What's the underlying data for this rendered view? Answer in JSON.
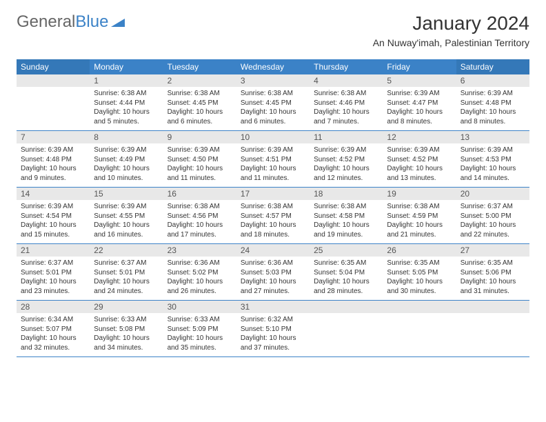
{
  "logo": {
    "text1": "General",
    "text2": "Blue"
  },
  "title": "January 2024",
  "location": "An Nuway'imah, Palestinian Territory",
  "colors": {
    "header_weekday": "#3b82c7",
    "header_weekend": "#3478b8",
    "daynum_bg": "#e8e8e8",
    "border": "#3b82c7",
    "text": "#333333",
    "logo_gray": "#666666",
    "logo_blue": "#3b82c7"
  },
  "day_names": [
    "Sunday",
    "Monday",
    "Tuesday",
    "Wednesday",
    "Thursday",
    "Friday",
    "Saturday"
  ],
  "weeks": [
    [
      {
        "n": "",
        "empty": true
      },
      {
        "n": "1",
        "sr": "Sunrise: 6:38 AM",
        "ss": "Sunset: 4:44 PM",
        "d1": "Daylight: 10 hours",
        "d2": "and 5 minutes."
      },
      {
        "n": "2",
        "sr": "Sunrise: 6:38 AM",
        "ss": "Sunset: 4:45 PM",
        "d1": "Daylight: 10 hours",
        "d2": "and 6 minutes."
      },
      {
        "n": "3",
        "sr": "Sunrise: 6:38 AM",
        "ss": "Sunset: 4:45 PM",
        "d1": "Daylight: 10 hours",
        "d2": "and 6 minutes."
      },
      {
        "n": "4",
        "sr": "Sunrise: 6:38 AM",
        "ss": "Sunset: 4:46 PM",
        "d1": "Daylight: 10 hours",
        "d2": "and 7 minutes."
      },
      {
        "n": "5",
        "sr": "Sunrise: 6:39 AM",
        "ss": "Sunset: 4:47 PM",
        "d1": "Daylight: 10 hours",
        "d2": "and 8 minutes."
      },
      {
        "n": "6",
        "sr": "Sunrise: 6:39 AM",
        "ss": "Sunset: 4:48 PM",
        "d1": "Daylight: 10 hours",
        "d2": "and 8 minutes."
      }
    ],
    [
      {
        "n": "7",
        "sr": "Sunrise: 6:39 AM",
        "ss": "Sunset: 4:48 PM",
        "d1": "Daylight: 10 hours",
        "d2": "and 9 minutes."
      },
      {
        "n": "8",
        "sr": "Sunrise: 6:39 AM",
        "ss": "Sunset: 4:49 PM",
        "d1": "Daylight: 10 hours",
        "d2": "and 10 minutes."
      },
      {
        "n": "9",
        "sr": "Sunrise: 6:39 AM",
        "ss": "Sunset: 4:50 PM",
        "d1": "Daylight: 10 hours",
        "d2": "and 11 minutes."
      },
      {
        "n": "10",
        "sr": "Sunrise: 6:39 AM",
        "ss": "Sunset: 4:51 PM",
        "d1": "Daylight: 10 hours",
        "d2": "and 11 minutes."
      },
      {
        "n": "11",
        "sr": "Sunrise: 6:39 AM",
        "ss": "Sunset: 4:52 PM",
        "d1": "Daylight: 10 hours",
        "d2": "and 12 minutes."
      },
      {
        "n": "12",
        "sr": "Sunrise: 6:39 AM",
        "ss": "Sunset: 4:52 PM",
        "d1": "Daylight: 10 hours",
        "d2": "and 13 minutes."
      },
      {
        "n": "13",
        "sr": "Sunrise: 6:39 AM",
        "ss": "Sunset: 4:53 PM",
        "d1": "Daylight: 10 hours",
        "d2": "and 14 minutes."
      }
    ],
    [
      {
        "n": "14",
        "sr": "Sunrise: 6:39 AM",
        "ss": "Sunset: 4:54 PM",
        "d1": "Daylight: 10 hours",
        "d2": "and 15 minutes."
      },
      {
        "n": "15",
        "sr": "Sunrise: 6:39 AM",
        "ss": "Sunset: 4:55 PM",
        "d1": "Daylight: 10 hours",
        "d2": "and 16 minutes."
      },
      {
        "n": "16",
        "sr": "Sunrise: 6:38 AM",
        "ss": "Sunset: 4:56 PM",
        "d1": "Daylight: 10 hours",
        "d2": "and 17 minutes."
      },
      {
        "n": "17",
        "sr": "Sunrise: 6:38 AM",
        "ss": "Sunset: 4:57 PM",
        "d1": "Daylight: 10 hours",
        "d2": "and 18 minutes."
      },
      {
        "n": "18",
        "sr": "Sunrise: 6:38 AM",
        "ss": "Sunset: 4:58 PM",
        "d1": "Daylight: 10 hours",
        "d2": "and 19 minutes."
      },
      {
        "n": "19",
        "sr": "Sunrise: 6:38 AM",
        "ss": "Sunset: 4:59 PM",
        "d1": "Daylight: 10 hours",
        "d2": "and 21 minutes."
      },
      {
        "n": "20",
        "sr": "Sunrise: 6:37 AM",
        "ss": "Sunset: 5:00 PM",
        "d1": "Daylight: 10 hours",
        "d2": "and 22 minutes."
      }
    ],
    [
      {
        "n": "21",
        "sr": "Sunrise: 6:37 AM",
        "ss": "Sunset: 5:01 PM",
        "d1": "Daylight: 10 hours",
        "d2": "and 23 minutes."
      },
      {
        "n": "22",
        "sr": "Sunrise: 6:37 AM",
        "ss": "Sunset: 5:01 PM",
        "d1": "Daylight: 10 hours",
        "d2": "and 24 minutes."
      },
      {
        "n": "23",
        "sr": "Sunrise: 6:36 AM",
        "ss": "Sunset: 5:02 PM",
        "d1": "Daylight: 10 hours",
        "d2": "and 26 minutes."
      },
      {
        "n": "24",
        "sr": "Sunrise: 6:36 AM",
        "ss": "Sunset: 5:03 PM",
        "d1": "Daylight: 10 hours",
        "d2": "and 27 minutes."
      },
      {
        "n": "25",
        "sr": "Sunrise: 6:35 AM",
        "ss": "Sunset: 5:04 PM",
        "d1": "Daylight: 10 hours",
        "d2": "and 28 minutes."
      },
      {
        "n": "26",
        "sr": "Sunrise: 6:35 AM",
        "ss": "Sunset: 5:05 PM",
        "d1": "Daylight: 10 hours",
        "d2": "and 30 minutes."
      },
      {
        "n": "27",
        "sr": "Sunrise: 6:35 AM",
        "ss": "Sunset: 5:06 PM",
        "d1": "Daylight: 10 hours",
        "d2": "and 31 minutes."
      }
    ],
    [
      {
        "n": "28",
        "sr": "Sunrise: 6:34 AM",
        "ss": "Sunset: 5:07 PM",
        "d1": "Daylight: 10 hours",
        "d2": "and 32 minutes."
      },
      {
        "n": "29",
        "sr": "Sunrise: 6:33 AM",
        "ss": "Sunset: 5:08 PM",
        "d1": "Daylight: 10 hours",
        "d2": "and 34 minutes."
      },
      {
        "n": "30",
        "sr": "Sunrise: 6:33 AM",
        "ss": "Sunset: 5:09 PM",
        "d1": "Daylight: 10 hours",
        "d2": "and 35 minutes."
      },
      {
        "n": "31",
        "sr": "Sunrise: 6:32 AM",
        "ss": "Sunset: 5:10 PM",
        "d1": "Daylight: 10 hours",
        "d2": "and 37 minutes."
      },
      {
        "n": "",
        "empty": true
      },
      {
        "n": "",
        "empty": true
      },
      {
        "n": "",
        "empty": true
      }
    ]
  ]
}
